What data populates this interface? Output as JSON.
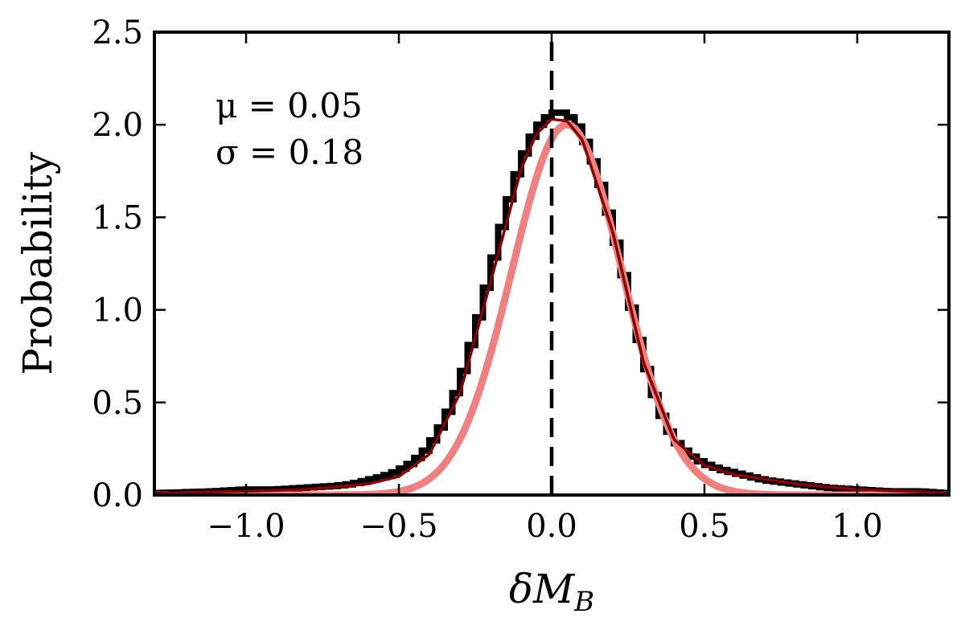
{
  "chart_data": {
    "type": "line",
    "title": "",
    "xlabel": "δM_B",
    "ylabel": "Probability",
    "xlim": [
      -1.3,
      1.3
    ],
    "ylim": [
      0.0,
      2.5
    ],
    "xticks": [
      "−1.0",
      "−0.5",
      "0.0",
      "0.5",
      "1.0"
    ],
    "xtick_values": [
      -1.0,
      -0.5,
      0.0,
      0.5,
      1.0
    ],
    "yticks": [
      "0.0",
      "0.5",
      "1.0",
      "1.5",
      "2.0",
      "2.5"
    ],
    "ytick_values": [
      0.0,
      0.5,
      1.0,
      1.5,
      2.0,
      2.5
    ],
    "grid": false,
    "annotations": [
      {
        "text": "μ = 0.05"
      },
      {
        "text": "σ = 0.18"
      }
    ],
    "reference_line": {
      "x": 0.0,
      "style": "dashed",
      "color": "#000000"
    },
    "series": [
      {
        "kind": "histogram-step",
        "color": "#000000",
        "bin_width": 0.025,
        "bin_start": -1.3,
        "bin_end": 1.3,
        "x": [
          -1.3,
          -1.1,
          -1.0,
          -0.9,
          -0.8,
          -0.7,
          -0.65,
          -0.6,
          -0.55,
          -0.5,
          -0.45,
          -0.4,
          -0.35,
          -0.3,
          -0.25,
          -0.2,
          -0.15,
          -0.1,
          -0.05,
          0.0,
          0.025,
          0.05,
          0.075,
          0.1,
          0.15,
          0.2,
          0.25,
          0.3,
          0.35,
          0.4,
          0.45,
          0.5,
          0.55,
          0.6,
          0.65,
          0.7,
          0.8,
          0.9,
          1.0,
          1.1,
          1.2,
          1.3
        ],
        "values": [
          0.01,
          0.02,
          0.03,
          0.03,
          0.04,
          0.05,
          0.06,
          0.08,
          0.1,
          0.13,
          0.18,
          0.26,
          0.4,
          0.6,
          0.88,
          1.2,
          1.53,
          1.8,
          1.98,
          2.06,
          2.07,
          2.06,
          2.02,
          1.96,
          1.75,
          1.45,
          1.1,
          0.75,
          0.47,
          0.3,
          0.22,
          0.17,
          0.14,
          0.12,
          0.1,
          0.08,
          0.06,
          0.04,
          0.03,
          0.02,
          0.02,
          0.01
        ]
      },
      {
        "kind": "gaussian-fit",
        "color": "#f08080",
        "mu": 0.05,
        "sigma": 0.18,
        "amplitude": 2.0
      },
      {
        "kind": "smoothed-fit",
        "color": "#8b0000",
        "x": [
          -1.3,
          -1.0,
          -0.8,
          -0.6,
          -0.5,
          -0.4,
          -0.3,
          -0.2,
          -0.1,
          -0.05,
          0.0,
          0.05,
          0.1,
          0.2,
          0.3,
          0.4,
          0.5,
          0.6,
          0.8,
          1.0,
          1.3
        ],
        "values": [
          0.01,
          0.02,
          0.03,
          0.06,
          0.1,
          0.22,
          0.55,
          1.15,
          1.76,
          1.95,
          2.03,
          2.02,
          1.92,
          1.42,
          0.72,
          0.3,
          0.16,
          0.11,
          0.06,
          0.03,
          0.01
        ]
      }
    ]
  }
}
